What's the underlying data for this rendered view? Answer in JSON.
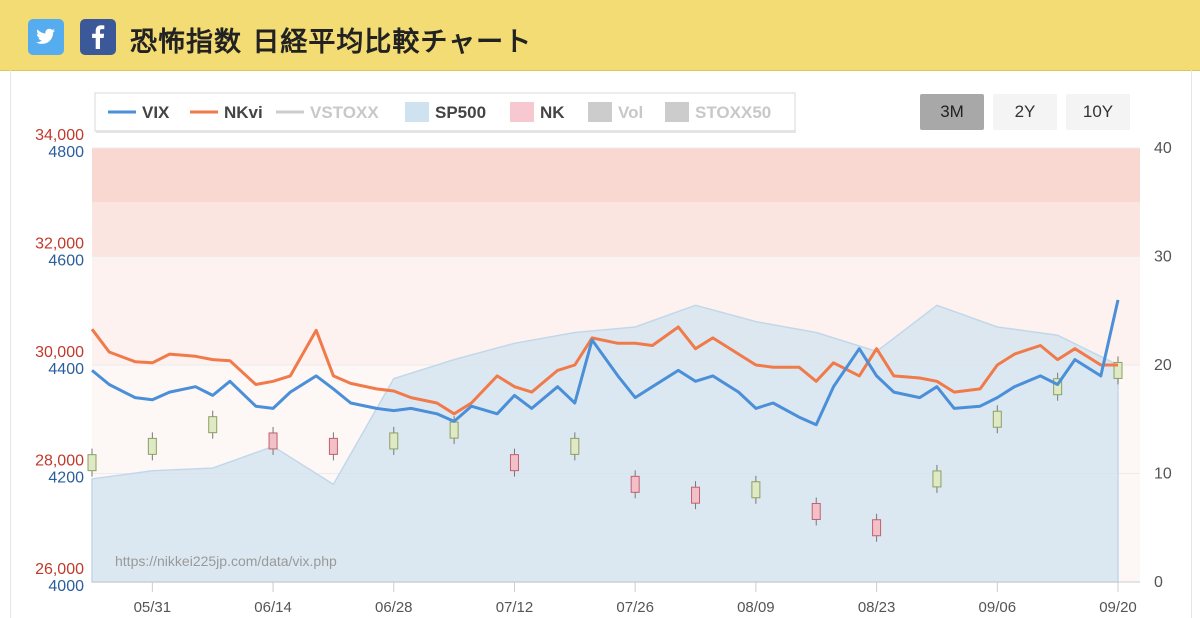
{
  "header": {
    "title": "恐怖指数 日経平均比較チャート",
    "twitter_icon": "twitter-icon",
    "facebook_icon": "facebook-icon",
    "twitter_color": "#55acee",
    "facebook_color": "#3b5998",
    "background": "#f3dc73"
  },
  "range_buttons": {
    "b3m": "3M",
    "b2y": "2Y",
    "b10y": "10Y",
    "active": "3M"
  },
  "watermark": "https://nikkei225jp.com/data/vix.php",
  "chart_data": {
    "type": "line",
    "legend_position": "top-left",
    "legend": [
      {
        "label": "VIX",
        "color": "#4a8fd8",
        "kind": "line",
        "enabled": true
      },
      {
        "label": "NKvi",
        "color": "#f07a4a",
        "kind": "line",
        "enabled": true
      },
      {
        "label": "VSTOXX",
        "color": "#cccccc",
        "kind": "line",
        "enabled": false
      },
      {
        "label": "SP500",
        "color": "#cfe2ef",
        "kind": "box",
        "enabled": true
      },
      {
        "label": "NK",
        "color": "#f7c8cf",
        "kind": "box",
        "enabled": true
      },
      {
        "label": "Vol",
        "color": "#cccccc",
        "kind": "box",
        "enabled": false
      },
      {
        "label": "STOXX50",
        "color": "#cccccc",
        "kind": "box",
        "enabled": false
      }
    ],
    "x_ticks": [
      "05/31",
      "06/14",
      "06/28",
      "07/12",
      "07/26",
      "08/09",
      "08/23",
      "09/06",
      "09/20"
    ],
    "x_range": [
      "2023-05-24",
      "2023-09-20"
    ],
    "y_left_nk": {
      "ticks": [
        "26,000",
        "28,000",
        "30,000",
        "32,000",
        "34,000"
      ],
      "range": [
        26000,
        34000
      ],
      "color": "#c0392b"
    },
    "y_left_sp500": {
      "ticks": [
        "4000",
        "4200",
        "4400",
        "4600",
        "4800"
      ],
      "range": [
        4000,
        4800
      ],
      "color": "#2a5d9e"
    },
    "y_right_vix": {
      "ticks": [
        "0",
        "10",
        "20",
        "30",
        "40"
      ],
      "range": [
        0,
        40
      ],
      "color": "#555555"
    },
    "bands": [
      {
        "from": 30,
        "to": 35,
        "color": "#fbe5e1"
      },
      {
        "from": 35,
        "to": 40,
        "color": "#f9d8d2"
      },
      {
        "from": 20,
        "to": 30,
        "color": "#fdf2ef"
      }
    ],
    "series": [
      {
        "name": "VIX",
        "color": "#4a8fd8",
        "x": [
          "2023-05-24",
          "2023-05-26",
          "2023-05-29",
          "2023-05-31",
          "2023-06-02",
          "2023-06-05",
          "2023-06-07",
          "2023-06-09",
          "2023-06-12",
          "2023-06-14",
          "2023-06-16",
          "2023-06-19",
          "2023-06-21",
          "2023-06-23",
          "2023-06-26",
          "2023-06-28",
          "2023-06-30",
          "2023-07-03",
          "2023-07-05",
          "2023-07-07",
          "2023-07-10",
          "2023-07-12",
          "2023-07-14",
          "2023-07-17",
          "2023-07-19",
          "2023-07-21",
          "2023-07-24",
          "2023-07-26",
          "2023-07-28",
          "2023-07-31",
          "2023-08-02",
          "2023-08-04",
          "2023-08-07",
          "2023-08-09",
          "2023-08-11",
          "2023-08-14",
          "2023-08-16",
          "2023-08-18",
          "2023-08-21",
          "2023-08-23",
          "2023-08-25",
          "2023-08-28",
          "2023-08-30",
          "2023-09-01",
          "2023-09-04",
          "2023-09-06",
          "2023-09-08",
          "2023-09-11",
          "2023-09-13",
          "2023-09-15",
          "2023-09-18",
          "2023-09-20"
        ],
        "y": [
          19.5,
          18.2,
          17.0,
          16.8,
          17.5,
          18.0,
          17.2,
          18.5,
          16.2,
          16.0,
          17.5,
          19.0,
          17.8,
          16.5,
          16.0,
          15.8,
          16.0,
          15.5,
          14.8,
          16.2,
          15.5,
          17.2,
          16.0,
          18.0,
          16.5,
          22.3,
          19.0,
          17.0,
          18.0,
          19.5,
          18.5,
          19.0,
          17.5,
          16.0,
          16.5,
          15.2,
          14.5,
          18.0,
          21.5,
          19.0,
          17.5,
          17.0,
          18.0,
          16.0,
          16.2,
          17.0,
          18.0,
          19.0,
          18.2,
          20.5,
          19.0,
          26.0
        ]
      },
      {
        "name": "NKvi",
        "color": "#f07a4a",
        "x": [
          "2023-05-24",
          "2023-05-26",
          "2023-05-29",
          "2023-05-31",
          "2023-06-02",
          "2023-06-05",
          "2023-06-07",
          "2023-06-09",
          "2023-06-12",
          "2023-06-14",
          "2023-06-16",
          "2023-06-19",
          "2023-06-21",
          "2023-06-23",
          "2023-06-26",
          "2023-06-28",
          "2023-06-30",
          "2023-07-03",
          "2023-07-05",
          "2023-07-07",
          "2023-07-10",
          "2023-07-12",
          "2023-07-14",
          "2023-07-17",
          "2023-07-19",
          "2023-07-21",
          "2023-07-24",
          "2023-07-26",
          "2023-07-28",
          "2023-07-31",
          "2023-08-02",
          "2023-08-04",
          "2023-08-07",
          "2023-08-09",
          "2023-08-11",
          "2023-08-14",
          "2023-08-16",
          "2023-08-18",
          "2023-08-21",
          "2023-08-23",
          "2023-08-25",
          "2023-08-28",
          "2023-08-30",
          "2023-09-01",
          "2023-09-04",
          "2023-09-06",
          "2023-09-08",
          "2023-09-11",
          "2023-09-13",
          "2023-09-15",
          "2023-09-18",
          "2023-09-20"
        ],
        "y": [
          23.3,
          21.2,
          20.3,
          20.2,
          21.0,
          20.8,
          20.5,
          20.4,
          18.2,
          18.5,
          19.0,
          23.2,
          19.0,
          18.3,
          17.8,
          17.6,
          17.0,
          16.5,
          15.5,
          16.5,
          19.0,
          18.0,
          17.5,
          19.5,
          20.0,
          22.5,
          22.0,
          22.0,
          21.8,
          23.5,
          21.5,
          22.5,
          21.0,
          20.0,
          19.8,
          19.8,
          18.5,
          20.2,
          19.0,
          21.5,
          19.0,
          18.8,
          18.5,
          17.5,
          17.8,
          20.0,
          21.0,
          21.8,
          20.5,
          21.5,
          20.0,
          20.0
        ]
      },
      {
        "name": "SP500",
        "x": [
          "2023-05-24",
          "2023-05-31",
          "2023-06-07",
          "2023-06-14",
          "2023-06-21",
          "2023-06-28",
          "2023-07-05",
          "2023-07-12",
          "2023-07-19",
          "2023-07-26",
          "2023-08-02",
          "2023-08-09",
          "2023-08-16",
          "2023-08-23",
          "2023-08-30",
          "2023-09-06",
          "2023-09-13",
          "2023-09-20"
        ],
        "y": [
          4190,
          4205,
          4210,
          4250,
          4180,
          4375,
          4410,
          4440,
          4460,
          4470,
          4510,
          4480,
          4460,
          4425,
          4510,
          4470,
          4455,
          4400
        ]
      },
      {
        "name": "NK",
        "x": [
          "2023-05-24",
          "2023-05-31",
          "2023-06-07",
          "2023-06-14",
          "2023-06-21",
          "2023-06-28",
          "2023-07-05",
          "2023-07-12",
          "2023-07-19",
          "2023-07-26",
          "2023-08-02",
          "2023-08-09",
          "2023-08-16",
          "2023-08-23",
          "2023-08-30",
          "2023-09-06",
          "2023-09-13",
          "2023-09-20"
        ],
        "y": [
          28200,
          28500,
          28900,
          28600,
          28500,
          28600,
          28800,
          28200,
          28500,
          27800,
          27600,
          27700,
          27300,
          27000,
          27900,
          29000,
          29600,
          29900
        ]
      }
    ]
  }
}
